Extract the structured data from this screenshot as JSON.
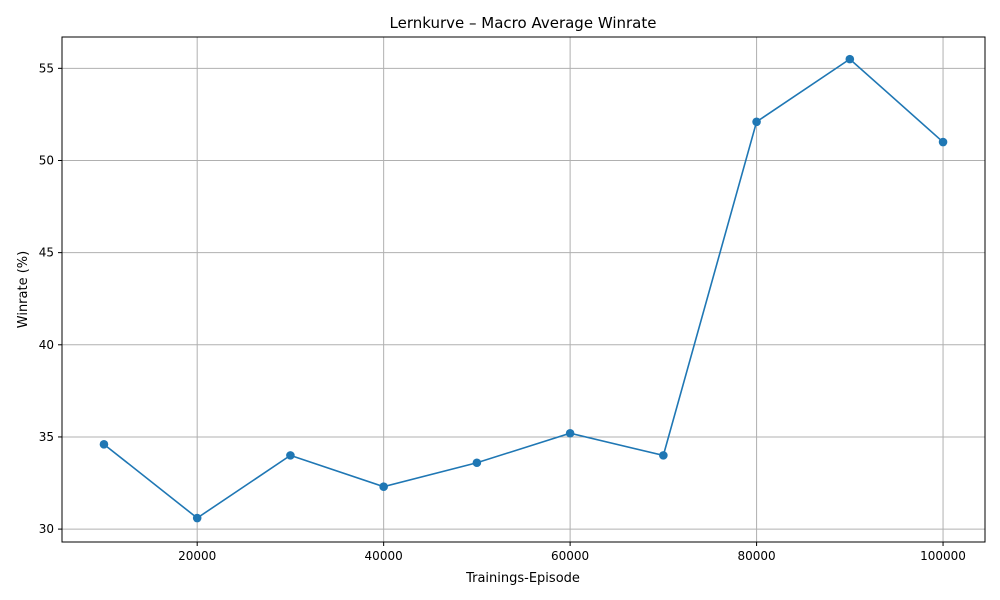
{
  "chart_data": {
    "type": "line",
    "title": "Lernkurve – Macro Average Winrate",
    "xlabel": "Trainings-Episode",
    "ylabel": "Winrate (%)",
    "x": [
      10000,
      20000,
      30000,
      40000,
      50000,
      60000,
      70000,
      80000,
      90000,
      100000
    ],
    "series": [
      {
        "values": [
          34.6,
          30.6,
          34.0,
          32.3,
          33.6,
          35.2,
          34.0,
          52.1,
          55.5,
          51.0
        ],
        "color": "#1f77b4",
        "marker": "circle"
      }
    ],
    "xlim": [
      5500,
      104500
    ],
    "ylim": [
      29.3,
      56.7
    ],
    "xticks": [
      20000,
      40000,
      60000,
      80000,
      100000
    ],
    "yticks": [
      30,
      35,
      40,
      45,
      50,
      55
    ],
    "grid": true,
    "legend": "none"
  }
}
